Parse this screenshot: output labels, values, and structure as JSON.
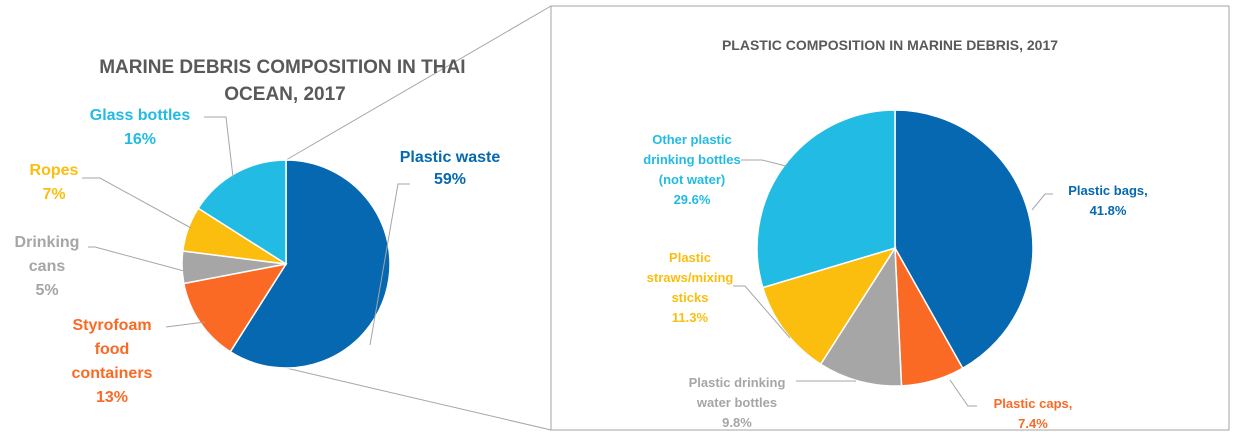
{
  "chart_data": [
    {
      "type": "pie",
      "title_lines": [
        "MARINE DEBRIS COMPOSITION IN THAI",
        "OCEAN, 2017"
      ],
      "series": [
        {
          "name": "Plastic waste",
          "label_lines": [
            "Plastic waste"
          ],
          "value_label": "59%",
          "value": 59,
          "color": "#0568b0"
        },
        {
          "name": "Styrofoam food containers",
          "label_lines": [
            "Styrofoam",
            "food",
            "containers"
          ],
          "value_label": "13%",
          "value": 13,
          "color": "#fa6a25"
        },
        {
          "name": "Drinking cans",
          "label_lines": [
            "Drinking",
            "cans"
          ],
          "value_label": "5%",
          "value": 5,
          "color": "#a6a6a6"
        },
        {
          "name": "Ropes",
          "label_lines": [
            "Ropes"
          ],
          "value_label": "7%",
          "value": 7,
          "color": "#fbbe0e"
        },
        {
          "name": "Glass bottles",
          "label_lines": [
            "Glass bottles"
          ],
          "value_label": "16%",
          "value": 16,
          "color": "#22bbe3"
        }
      ]
    },
    {
      "type": "pie",
      "title_lines": [
        "PLASTIC COMPOSITION IN MARINE DEBRIS, 2017"
      ],
      "series": [
        {
          "name": "Plastic bags",
          "label_lines": [
            "Plastic bags,"
          ],
          "value_label": "41.8%",
          "value": 41.8,
          "color": "#0568b0"
        },
        {
          "name": "Plastic caps",
          "label_lines": [
            "Plastic caps,"
          ],
          "value_label": "7.4%",
          "value": 7.4,
          "color": "#fa6a25"
        },
        {
          "name": "Plastic drinking water bottles",
          "label_lines": [
            "Plastic drinking",
            "water bottles"
          ],
          "value_label": "9.8%",
          "value": 9.8,
          "color": "#a6a6a6"
        },
        {
          "name": "Plastic straws/mixing sticks",
          "label_lines": [
            "Plastic",
            "straws/mixing",
            "sticks"
          ],
          "value_label": "11.3%",
          "value": 11.3,
          "color": "#fbbe0e"
        },
        {
          "name": "Other plastic drinking bottles (not water)",
          "label_lines": [
            "Other plastic",
            "drinking bottles",
            "(not water)"
          ],
          "value_label": "29.6%",
          "value": 29.6,
          "color": "#22bbe3"
        }
      ]
    }
  ],
  "colors": {
    "title": "#595959",
    "leader": "#a6a6a6",
    "frame": "#a6a6a6",
    "background": "#ffffff"
  }
}
